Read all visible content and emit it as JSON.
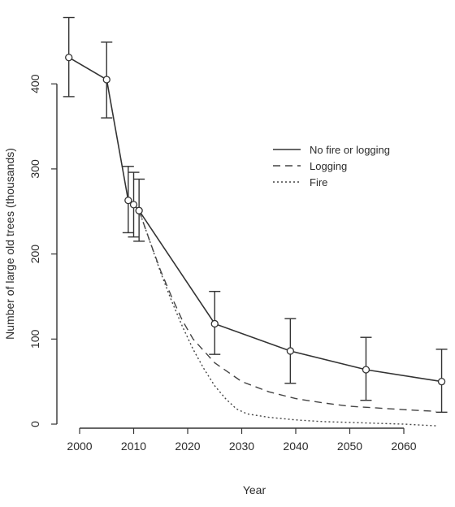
{
  "chart_data": {
    "type": "line",
    "title": "",
    "xlabel": "Year",
    "ylabel": "Number of large old trees (thousands)",
    "xlim": [
      1995,
      2068
    ],
    "ylim": [
      -5,
      480
    ],
    "x_ticks": [
      2000,
      2010,
      2020,
      2030,
      2040,
      2050,
      2060
    ],
    "y_ticks": [
      0,
      100,
      200,
      300,
      400
    ],
    "legend_position": "top-right",
    "grid": false,
    "observations": [
      {
        "x": 1998,
        "y": 431,
        "lower": 385,
        "upper": 478
      },
      {
        "x": 2005,
        "y": 405,
        "lower": 360,
        "upper": 449
      },
      {
        "x": 2009,
        "y": 263,
        "lower": 225,
        "upper": 303
      },
      {
        "x": 2010,
        "y": 258,
        "lower": 220,
        "upper": 296
      },
      {
        "x": 2011,
        "y": 251,
        "lower": 215,
        "upper": 288
      },
      {
        "x": 2025,
        "y": 118,
        "lower": 82,
        "upper": 156
      },
      {
        "x": 2039,
        "y": 86,
        "lower": 48,
        "upper": 124
      },
      {
        "x": 2053,
        "y": 64,
        "lower": 28,
        "upper": 102
      },
      {
        "x": 2067,
        "y": 50,
        "lower": 14,
        "upper": 88
      }
    ],
    "series": [
      {
        "name": "No fire or logging",
        "style": "solid",
        "color": "#333333",
        "x": [
          1998,
          2005,
          2009,
          2010,
          2011,
          2025,
          2039,
          2053,
          2067
        ],
        "y": [
          431,
          405,
          263,
          258,
          251,
          118,
          86,
          64,
          50
        ]
      },
      {
        "name": "Logging",
        "style": "dashed",
        "color": "#444444",
        "x": [
          2011,
          2013,
          2015,
          2017,
          2019,
          2021,
          2025,
          2030,
          2035,
          2040,
          2045,
          2050,
          2055,
          2060,
          2066
        ],
        "y": [
          251,
          215,
          180,
          150,
          122,
          100,
          72,
          50,
          38,
          30,
          25,
          21,
          19,
          17,
          15
        ]
      },
      {
        "name": "Fire",
        "style": "dotted",
        "color": "#444444",
        "x": [
          2011,
          2013,
          2015,
          2017,
          2019,
          2021,
          2023,
          2025,
          2027,
          2029,
          2031,
          2035,
          2040,
          2045,
          2050,
          2055,
          2060,
          2066
        ],
        "y": [
          251,
          215,
          178,
          145,
          115,
          88,
          65,
          45,
          30,
          18,
          12,
          8,
          5,
          3,
          2,
          1,
          0,
          -2
        ]
      }
    ]
  }
}
